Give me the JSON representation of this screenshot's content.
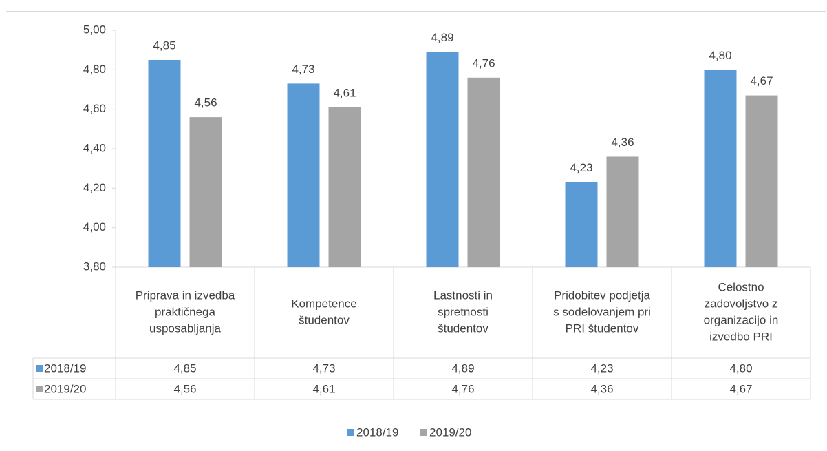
{
  "chart_data": {
    "type": "bar",
    "categories": [
      [
        "Priprava in izvedba",
        "praktičnega",
        "usposabljanja"
      ],
      [
        "Kompetence",
        "študentov"
      ],
      [
        "Lastnosti in",
        "spretnosti",
        "študentov"
      ],
      [
        "Pridobitev podjetja",
        "s sodelovanjem pri",
        "PRI študentov"
      ],
      [
        "Celostno",
        "zadovoljstvo z",
        "organizacijo in",
        "izvedbo PRI"
      ]
    ],
    "series": [
      {
        "name": "2018/19",
        "color": "#5b9bd5",
        "values": [
          4.85,
          4.73,
          4.89,
          4.23,
          4.8
        ],
        "value_labels": [
          "4,85",
          "4,73",
          "4,89",
          "4,23",
          "4,80"
        ]
      },
      {
        "name": "2019/20",
        "color": "#a5a5a5",
        "values": [
          4.56,
          4.61,
          4.76,
          4.36,
          4.67
        ],
        "value_labels": [
          "4,56",
          "4,61",
          "4,76",
          "4,36",
          "4,67"
        ]
      }
    ],
    "ylim": [
      3.8,
      5.0
    ],
    "yticks": [
      {
        "value": 3.8,
        "label": "3,80"
      },
      {
        "value": 4.0,
        "label": "4,00"
      },
      {
        "value": 4.2,
        "label": "4,20"
      },
      {
        "value": 4.4,
        "label": "4,40"
      },
      {
        "value": 4.6,
        "label": "4,60"
      },
      {
        "value": 4.8,
        "label": "4,80"
      },
      {
        "value": 5.0,
        "label": "5,00"
      }
    ],
    "grid": false,
    "legend": "bottom"
  }
}
